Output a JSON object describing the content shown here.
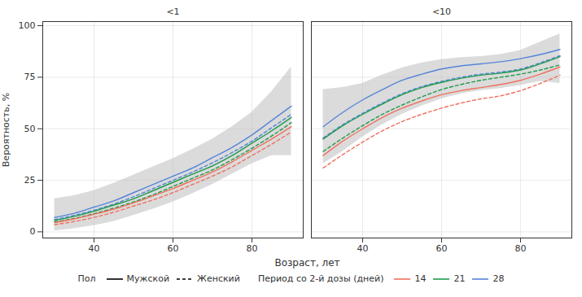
{
  "chart_data": {
    "type": "line",
    "x_label": "Возраст, лет",
    "y_label": "Вероятность, %",
    "xlim": [
      27,
      93
    ],
    "ylim": [
      -3,
      102
    ],
    "xticks": [
      40,
      60,
      80
    ],
    "yticks": [
      0,
      25,
      50,
      75,
      100
    ],
    "grid": true,
    "legend": "bottom",
    "x": [
      30,
      35,
      40,
      45,
      50,
      55,
      60,
      65,
      70,
      75,
      80,
      85,
      90
    ],
    "legend_groups": [
      {
        "title": "Пол",
        "items": [
          {
            "label": "Мужской",
            "line_style": "solid"
          },
          {
            "label": "Женский",
            "line_style": "dashed"
          }
        ]
      },
      {
        "title": "Период со 2-й дозы (дней)",
        "items": [
          {
            "label": "14",
            "color": "#f0705f"
          },
          {
            "label": "21",
            "color": "#1e9b4b"
          },
          {
            "label": "28",
            "color": "#5585d8"
          }
        ]
      }
    ],
    "facets": [
      {
        "title": "<1",
        "band": {
          "lower": [
            0.5,
            1.5,
            3,
            5,
            8,
            11,
            14.5,
            18.5,
            23,
            28,
            33,
            37,
            37
          ],
          "upper": [
            16,
            17.5,
            20,
            23.5,
            27.5,
            31.5,
            35.5,
            40,
            45,
            51,
            58,
            68,
            80
          ]
        },
        "series": [
          {
            "period": "28",
            "sex": "Мужской",
            "color": "#5585d8",
            "line_style": "solid",
            "values": [
              7,
              9,
              12,
              15,
              19,
              23,
              27,
              31,
              36,
              41,
              47,
              54,
              61
            ]
          },
          {
            "period": "28",
            "sex": "Женский",
            "color": "#5585d8",
            "line_style": "dashed",
            "values": [
              6,
              8,
              10.5,
              13.5,
              17,
              21,
              25,
              29,
              33.5,
              38.5,
              44,
              50.5,
              57
            ]
          },
          {
            "period": "21",
            "sex": "Мужской",
            "color": "#1e9b4b",
            "line_style": "solid",
            "values": [
              5.5,
              7.5,
              10,
              13,
              16,
              20,
              24,
              28,
              32,
              37,
              43,
              49,
              55.5
            ]
          },
          {
            "period": "21",
            "sex": "Женский",
            "color": "#1e9b4b",
            "line_style": "dashed",
            "values": [
              4.8,
              6.5,
              8.8,
              11.5,
              14.5,
              18,
              22,
              26,
              30,
              35,
              40.5,
              46.5,
              53
            ]
          },
          {
            "period": "14",
            "sex": "Мужской",
            "color": "#f0705f",
            "line_style": "solid",
            "values": [
              4.5,
              6.3,
              8.5,
              11,
              14,
              17.5,
              21,
              25,
              29,
              34,
              39.5,
              45,
              51
            ]
          },
          {
            "period": "14",
            "sex": "Женский",
            "color": "#f0705f",
            "line_style": "dashed",
            "values": [
              3.5,
              5,
              7,
              9.5,
              12.5,
              15.5,
              19,
              23,
              27,
              31.5,
              37,
              42.5,
              48.5
            ]
          }
        ]
      },
      {
        "title": "<10",
        "band": {
          "lower": [
            33,
            39,
            46,
            52,
            57,
            61,
            64.5,
            67,
            68.5,
            69.5,
            71,
            73,
            72
          ],
          "upper": [
            69,
            70,
            72,
            76,
            79.5,
            82,
            83.5,
            84.5,
            85,
            86,
            88,
            92,
            96
          ]
        },
        "series": [
          {
            "period": "28",
            "sex": "Мужской",
            "color": "#5585d8",
            "line_style": "solid",
            "values": [
              51,
              58,
              64,
              69,
              73.5,
              76.5,
              79,
              80.5,
              81.5,
              82.5,
              84,
              86,
              88.5
            ]
          },
          {
            "period": "28",
            "sex": "Женский",
            "color": "#5585d8",
            "line_style": "dashed",
            "values": [
              45.5,
              52,
              57.5,
              62.5,
              67,
              70.5,
              73,
              75,
              76.5,
              77.5,
              79,
              82,
              85.5
            ]
          },
          {
            "period": "21",
            "sex": "Мужской",
            "color": "#1e9b4b",
            "line_style": "solid",
            "values": [
              45,
              51.5,
              57,
              62,
              66.5,
              70,
              72.5,
              74.5,
              76,
              77,
              78.5,
              81.5,
              85
            ]
          },
          {
            "period": "21",
            "sex": "Женский",
            "color": "#1e9b4b",
            "line_style": "dashed",
            "values": [
              39,
              45.5,
              51.5,
              57,
              61.5,
              65.5,
              69,
              71.5,
              73.5,
              75,
              76.5,
              78.5,
              81
            ]
          },
          {
            "period": "14",
            "sex": "Мужской",
            "color": "#f0705f",
            "line_style": "solid",
            "values": [
              37,
              44,
              50,
              55.5,
              60,
              63.5,
              66.5,
              68.5,
              70,
              71.5,
              73.5,
              76.5,
              80
            ]
          },
          {
            "period": "14",
            "sex": "Женский",
            "color": "#f0705f",
            "line_style": "dashed",
            "values": [
              31,
              37.5,
              43.5,
              49,
              53.5,
              57,
              60,
              62.5,
              64.5,
              66,
              68.5,
              72,
              76
            ]
          }
        ]
      }
    ]
  }
}
